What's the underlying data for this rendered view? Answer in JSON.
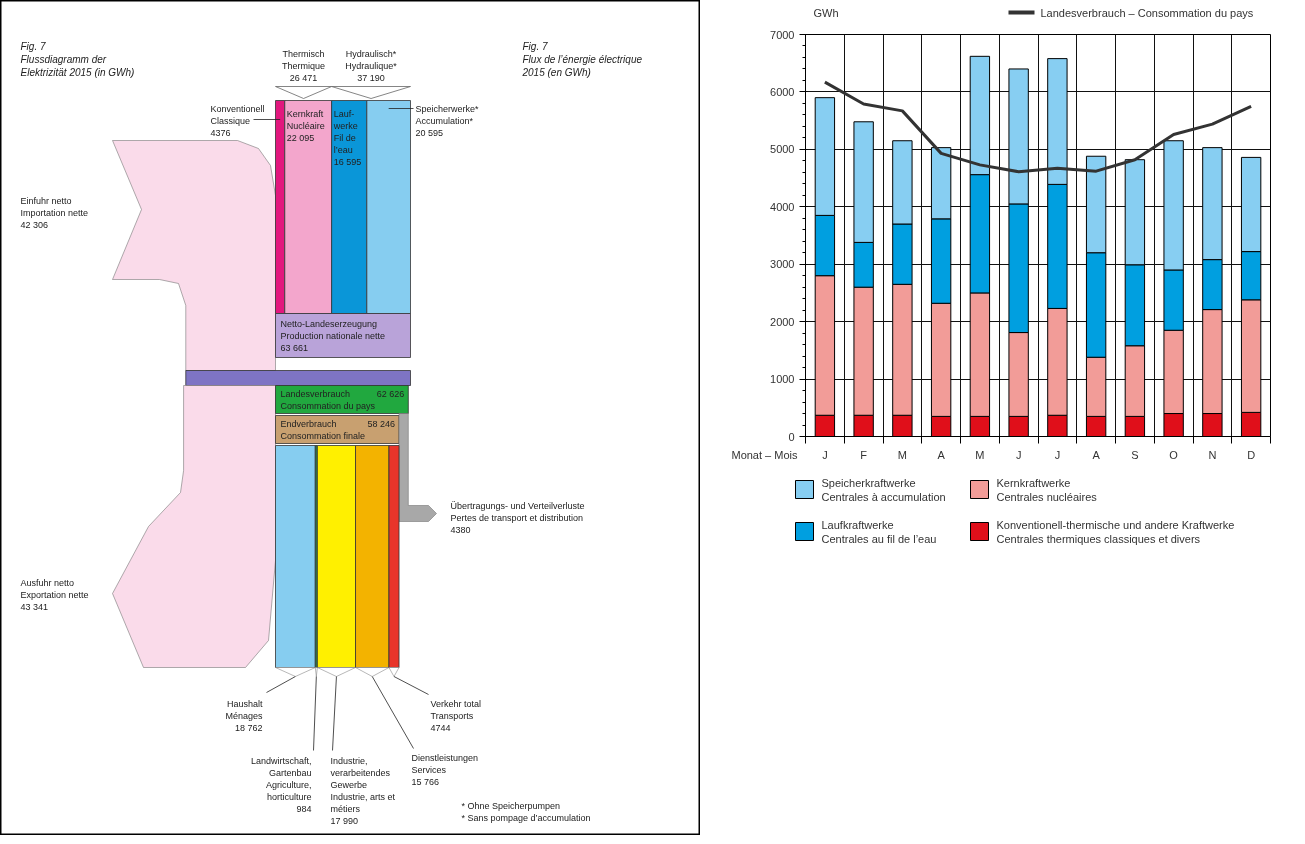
{
  "chart_data": [
    {
      "type": "other",
      "title": "Fig. 7\nFlussdiagramm der\nElektrizität 2015 (in GWh)",
      "subtitle": "Fig. 7\nFlux de l’énergie électrique\n2015 (en GWh)",
      "categories": [
        "Konventionell\nClassique",
        "Kernkraft\nNucléaire",
        "Lauf-\nwerke\nFil de\nl’eau",
        "Speicherwerke*\nAccumulation*",
        "Thermisch\nThermique",
        "Hydraulisch*\nHydraulique*",
        "Einfuhr netto\nImportation nette",
        "Netto-Landeserzeugung\nProduction nationale nette",
        "Landesverbrauch\nConsommation du pays",
        "Endverbrauch\nConsommation finale",
        "Übertragungs- und Verteilverluste\nPertes de transport et distribution",
        "Ausfuhr netto\nExportation nette",
        "Haushalt\nMénages",
        "Landwirtschaft,\nGartenbau\nAgriculture,\nhorticulture",
        "Industrie,\nverarbeitendes\nGewerbe\nIndustrie, arts et\nmétiers",
        "Dienstleistungen\nServices",
        "Verkehr total\nTransports"
      ],
      "values": [
        4376,
        22095,
        16595,
        20595,
        26471,
        37190,
        42306,
        63661,
        62626,
        58246,
        4380,
        43341,
        18762,
        984,
        17990,
        15766,
        4744
      ],
      "value_labels": [
        "4376",
        "22 095",
        "16 595",
        "20 595",
        "26 471",
        "37 190",
        "42 306",
        "63 661",
        "62 626",
        "58 246",
        "4380",
        "43 341",
        "18 762",
        "984",
        "17 990",
        "15 766",
        "4744"
      ],
      "colors": [
        "#e2177e",
        "#f3a6cc",
        "#0a96d8",
        "#86cdf0",
        null,
        null,
        "#fadbea",
        "#b9a3d9",
        "#21a83f",
        "#c8a070",
        "#a8a8a8",
        "#fadbea",
        "#86cdf0",
        "#2f7f4f",
        "#fff000",
        "#f3b300",
        "#e8352a"
      ],
      "annotations": [
        "* Ohne Speicherpumpen",
        "* Sans pompage d’accumulation"
      ]
    },
    {
      "type": "bar",
      "stacked": true,
      "ylabel": "GWh",
      "xlabel": "Monat – Mois",
      "categories": [
        "J",
        "F",
        "M",
        "A",
        "M",
        "J",
        "J",
        "A",
        "S",
        "O",
        "N",
        "D"
      ],
      "ylim": [
        0,
        7000
      ],
      "yticks": [
        0,
        1000,
        2000,
        3000,
        4000,
        5000,
        6000,
        7000
      ],
      "grid": true,
      "legend": "bottom",
      "series": [
        {
          "name": "Konventionell-thermische und andere Kraftwerke\nCentrales thermiques classiques et divers",
          "color": "#e00f1a",
          "values": [
            370,
            370,
            370,
            350,
            350,
            350,
            370,
            350,
            350,
            400,
            400,
            420
          ]
        },
        {
          "name": "Kernkraftwerke\nCentrales nucléaires",
          "color": "#f29c98",
          "values": [
            2430,
            2230,
            2280,
            1970,
            2150,
            1460,
            1860,
            1030,
            1230,
            1450,
            1810,
            1960
          ]
        },
        {
          "name": "Laufkraftwerke\nCentrales au fil de l’eau",
          "color": "#009fe0",
          "values": [
            1050,
            780,
            1050,
            1470,
            2060,
            2240,
            2160,
            1820,
            1410,
            1050,
            870,
            840
          ]
        },
        {
          "name": "Speicherkraftwerke\nCentrales à accumulation",
          "color": "#87cef2",
          "values": [
            2050,
            2100,
            1450,
            1240,
            2060,
            2350,
            2190,
            1680,
            1830,
            2250,
            1950,
            1640
          ]
        },
        {
          "name": "Landesverbrauch – Consommation du pays",
          "type": "line",
          "color": "#333333",
          "values": [
            6170,
            5790,
            5670,
            4930,
            4730,
            4610,
            4670,
            4620,
            4820,
            5260,
            5440,
            5750
          ]
        }
      ]
    }
  ]
}
